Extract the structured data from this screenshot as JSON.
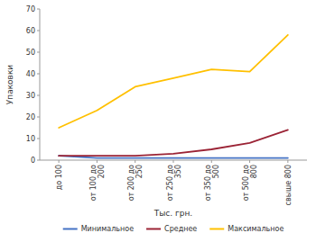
{
  "chart_data": {
    "type": "line",
    "xlabel": "Тыс. грн.",
    "ylabel": "Упаковки",
    "categories": [
      "до 100",
      "от 100 до\n200",
      "от 200 до\n250",
      "от 250 до\n350",
      "от 350 до\n500",
      "от 500 до\n800",
      "свыше 800"
    ],
    "series": [
      {
        "name": "Минимальное",
        "color": "#4472C4",
        "values": [
          2,
          1,
          1,
          1,
          1,
          1,
          1
        ]
      },
      {
        "name": "Среднее",
        "color": "#9B2335",
        "values": [
          2,
          2,
          2,
          3,
          5,
          8,
          14
        ]
      },
      {
        "name": "Максимальное",
        "color": "#FFC000",
        "values": [
          15,
          23,
          34,
          38,
          42,
          41,
          58
        ]
      }
    ],
    "ylim": [
      0,
      70
    ],
    "yticks": [
      0,
      10,
      20,
      30,
      40,
      50,
      60,
      70
    ],
    "grid": false,
    "legend": "bottom"
  }
}
